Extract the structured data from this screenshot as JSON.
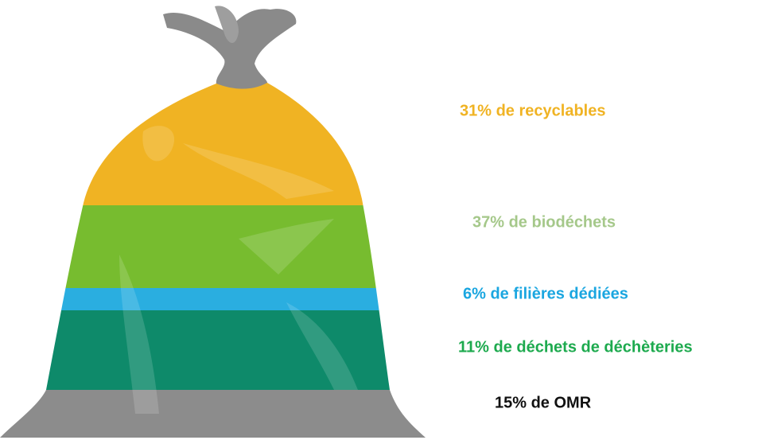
{
  "items": [
    {
      "label": "31% de recyclables",
      "color": "#f0b323",
      "band_color": "#f0b323"
    },
    {
      "label": "37% de biodéchets",
      "color": "#a5c88a",
      "band_color": "#77bc2f"
    },
    {
      "label": "6% de filières dédiées",
      "color": "#1aa6e0",
      "band_color": "#2aaee0"
    },
    {
      "label": "11% de déchets de déchèteries",
      "color": "#1daa4e",
      "band_color": "#0e8a6a"
    },
    {
      "label": "15% de OMR",
      "color": "#111111",
      "band_color": "#8c8c8c"
    }
  ]
}
